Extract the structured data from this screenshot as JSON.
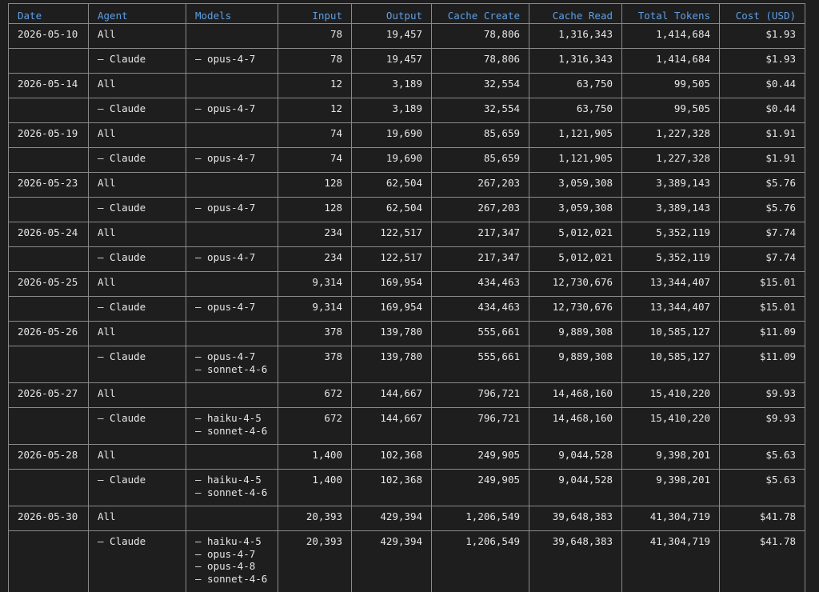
{
  "columns": [
    {
      "key": "date",
      "label": "Date",
      "align": "left",
      "width": 100
    },
    {
      "key": "agent",
      "label": "Agent",
      "align": "left",
      "width": 122
    },
    {
      "key": "models",
      "label": "Models",
      "align": "left",
      "width": 115
    },
    {
      "key": "input",
      "label": "Input",
      "align": "right",
      "width": 92
    },
    {
      "key": "output",
      "label": "Output",
      "align": "right",
      "width": 100
    },
    {
      "key": "cache_create",
      "label": "Cache Create",
      "align": "right",
      "width": 122
    },
    {
      "key": "cache_read",
      "label": "Cache Read",
      "align": "right",
      "width": 116
    },
    {
      "key": "total_tokens",
      "label": "Total Tokens",
      "align": "right",
      "width": 122
    },
    {
      "key": "cost",
      "label": "Cost (USD)",
      "align": "right",
      "width": 107
    }
  ],
  "accent_color": "#5f9fe4",
  "rows": [
    {
      "date": "2026-05-10",
      "agent": "All",
      "models": [],
      "input": "78",
      "output": "19,457",
      "cache_create": "78,806",
      "cache_read": "1,316,343",
      "total_tokens": "1,414,684",
      "cost": "$1.93"
    },
    {
      "date": "",
      "agent": "– Claude",
      "models": [
        "– opus-4-7"
      ],
      "input": "78",
      "output": "19,457",
      "cache_create": "78,806",
      "cache_read": "1,316,343",
      "total_tokens": "1,414,684",
      "cost": "$1.93"
    },
    {
      "date": "2026-05-14",
      "agent": "All",
      "models": [],
      "input": "12",
      "output": "3,189",
      "cache_create": "32,554",
      "cache_read": "63,750",
      "total_tokens": "99,505",
      "cost": "$0.44"
    },
    {
      "date": "",
      "agent": "– Claude",
      "models": [
        "– opus-4-7"
      ],
      "input": "12",
      "output": "3,189",
      "cache_create": "32,554",
      "cache_read": "63,750",
      "total_tokens": "99,505",
      "cost": "$0.44"
    },
    {
      "date": "2026-05-19",
      "agent": "All",
      "models": [],
      "input": "74",
      "output": "19,690",
      "cache_create": "85,659",
      "cache_read": "1,121,905",
      "total_tokens": "1,227,328",
      "cost": "$1.91"
    },
    {
      "date": "",
      "agent": "– Claude",
      "models": [
        "– opus-4-7"
      ],
      "input": "74",
      "output": "19,690",
      "cache_create": "85,659",
      "cache_read": "1,121,905",
      "total_tokens": "1,227,328",
      "cost": "$1.91"
    },
    {
      "date": "2026-05-23",
      "agent": "All",
      "models": [],
      "input": "128",
      "output": "62,504",
      "cache_create": "267,203",
      "cache_read": "3,059,308",
      "total_tokens": "3,389,143",
      "cost": "$5.76"
    },
    {
      "date": "",
      "agent": "– Claude",
      "models": [
        "– opus-4-7"
      ],
      "input": "128",
      "output": "62,504",
      "cache_create": "267,203",
      "cache_read": "3,059,308",
      "total_tokens": "3,389,143",
      "cost": "$5.76"
    },
    {
      "date": "2026-05-24",
      "agent": "All",
      "models": [],
      "input": "234",
      "output": "122,517",
      "cache_create": "217,347",
      "cache_read": "5,012,021",
      "total_tokens": "5,352,119",
      "cost": "$7.74"
    },
    {
      "date": "",
      "agent": "– Claude",
      "models": [
        "– opus-4-7"
      ],
      "input": "234",
      "output": "122,517",
      "cache_create": "217,347",
      "cache_read": "5,012,021",
      "total_tokens": "5,352,119",
      "cost": "$7.74"
    },
    {
      "date": "2026-05-25",
      "agent": "All",
      "models": [],
      "input": "9,314",
      "output": "169,954",
      "cache_create": "434,463",
      "cache_read": "12,730,676",
      "total_tokens": "13,344,407",
      "cost": "$15.01"
    },
    {
      "date": "",
      "agent": "– Claude",
      "models": [
        "– opus-4-7"
      ],
      "input": "9,314",
      "output": "169,954",
      "cache_create": "434,463",
      "cache_read": "12,730,676",
      "total_tokens": "13,344,407",
      "cost": "$15.01"
    },
    {
      "date": "2026-05-26",
      "agent": "All",
      "models": [],
      "input": "378",
      "output": "139,780",
      "cache_create": "555,661",
      "cache_read": "9,889,308",
      "total_tokens": "10,585,127",
      "cost": "$11.09"
    },
    {
      "date": "",
      "agent": "– Claude",
      "models": [
        "– opus-4-7",
        "– sonnet-4-6"
      ],
      "input": "378",
      "output": "139,780",
      "cache_create": "555,661",
      "cache_read": "9,889,308",
      "total_tokens": "10,585,127",
      "cost": "$11.09"
    },
    {
      "date": "2026-05-27",
      "agent": "All",
      "models": [],
      "input": "672",
      "output": "144,667",
      "cache_create": "796,721",
      "cache_read": "14,468,160",
      "total_tokens": "15,410,220",
      "cost": "$9.93"
    },
    {
      "date": "",
      "agent": "– Claude",
      "models": [
        "– haiku-4-5",
        "– sonnet-4-6"
      ],
      "input": "672",
      "output": "144,667",
      "cache_create": "796,721",
      "cache_read": "14,468,160",
      "total_tokens": "15,410,220",
      "cost": "$9.93"
    },
    {
      "date": "2026-05-28",
      "agent": "All",
      "models": [],
      "input": "1,400",
      "output": "102,368",
      "cache_create": "249,905",
      "cache_read": "9,044,528",
      "total_tokens": "9,398,201",
      "cost": "$5.63"
    },
    {
      "date": "",
      "agent": "– Claude",
      "models": [
        "– haiku-4-5",
        "– sonnet-4-6"
      ],
      "input": "1,400",
      "output": "102,368",
      "cache_create": "249,905",
      "cache_read": "9,044,528",
      "total_tokens": "9,398,201",
      "cost": "$5.63"
    },
    {
      "date": "2026-05-30",
      "agent": "All",
      "models": [],
      "input": "20,393",
      "output": "429,394",
      "cache_create": "1,206,549",
      "cache_read": "39,648,383",
      "total_tokens": "41,304,719",
      "cost": "$41.78"
    },
    {
      "date": "",
      "agent": "– Claude",
      "models": [
        "– haiku-4-5",
        "– opus-4-7",
        "– opus-4-8",
        "– sonnet-4-6"
      ],
      "input": "20,393",
      "output": "429,394",
      "cache_create": "1,206,549",
      "cache_read": "39,648,383",
      "total_tokens": "41,304,719",
      "cost": "$41.78"
    }
  ]
}
